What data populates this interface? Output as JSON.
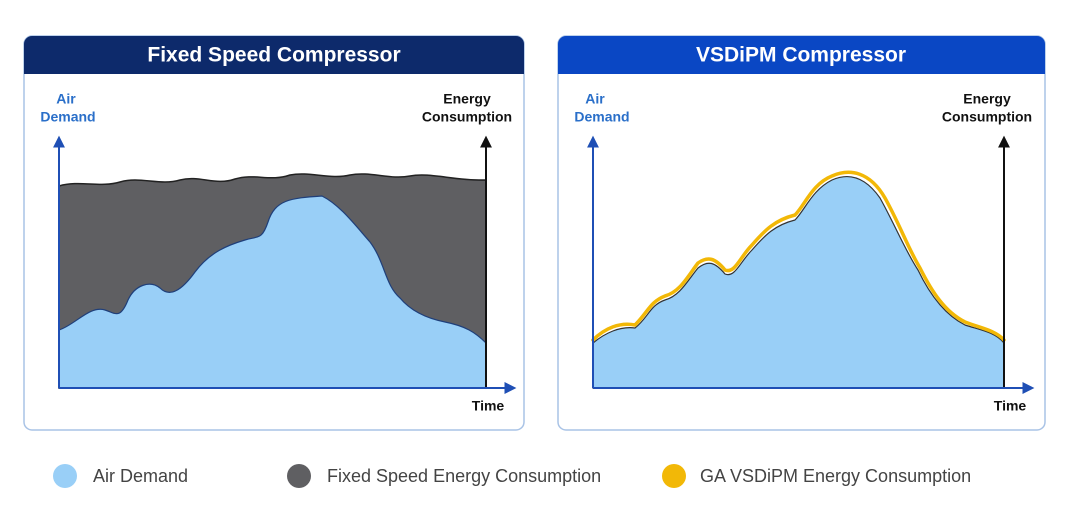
{
  "panels": [
    {
      "title": "Fixed Speed Compressor",
      "y_label": [
        "Air",
        "Demand"
      ],
      "y2_label": [
        "Energy",
        "Consumption"
      ],
      "x_label": "Time"
    },
    {
      "title": "VSDiPM Compressor",
      "y_label": [
        "Air",
        "Demand"
      ],
      "y2_label": [
        "Energy",
        "Consumption"
      ],
      "x_label": "Time"
    }
  ],
  "legend": [
    {
      "label": "Air Demand"
    },
    {
      "label": "Fixed Speed Energy Consumption"
    },
    {
      "label": "GA VSDiPM Energy Consumption"
    }
  ]
}
